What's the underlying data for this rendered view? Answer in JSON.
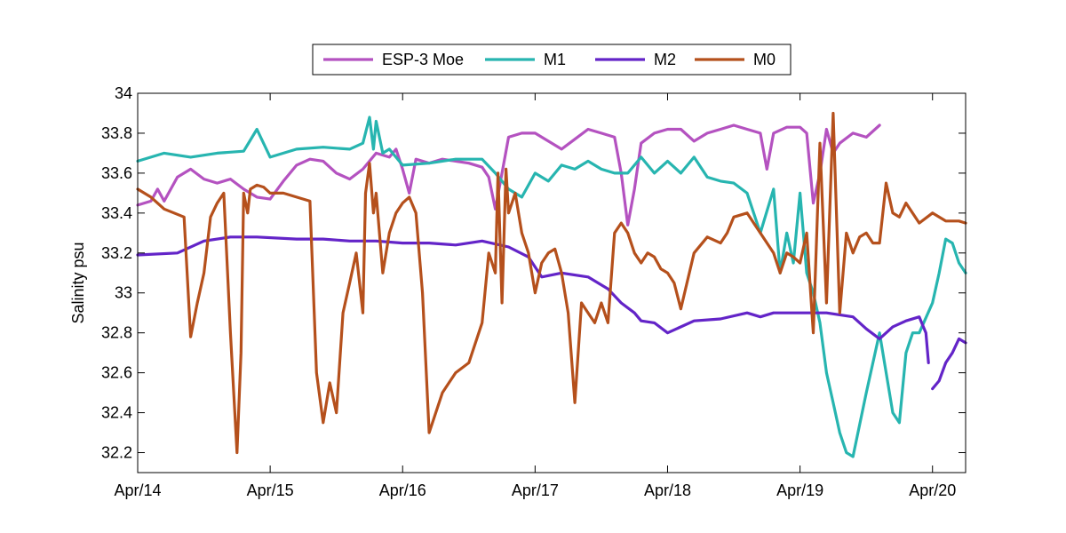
{
  "chart_data": {
    "type": "line",
    "title": "",
    "xlabel": "",
    "ylabel": "Salinity psu",
    "xlim": [
      0,
      6.25
    ],
    "ylim": [
      32.1,
      34.0
    ],
    "x_ticks": [
      {
        "x": 0,
        "label": "Apr/14"
      },
      {
        "x": 1,
        "label": "Apr/15"
      },
      {
        "x": 2,
        "label": "Apr/16"
      },
      {
        "x": 3,
        "label": "Apr/17"
      },
      {
        "x": 4,
        "label": "Apr/18"
      },
      {
        "x": 5,
        "label": "Apr/19"
      },
      {
        "x": 6,
        "label": "Apr/20"
      }
    ],
    "y_ticks": [
      {
        "y": 32.2,
        "label": "32.2"
      },
      {
        "y": 32.4,
        "label": "32.4"
      },
      {
        "y": 32.6,
        "label": "32.6"
      },
      {
        "y": 32.8,
        "label": "32.8"
      },
      {
        "y": 33.0,
        "label": "33"
      },
      {
        "y": 33.2,
        "label": "33.2"
      },
      {
        "y": 33.4,
        "label": "33.4"
      },
      {
        "y": 33.6,
        "label": "33.6"
      },
      {
        "y": 33.8,
        "label": "33.8"
      },
      {
        "y": 34.0,
        "label": "34"
      }
    ],
    "grid": false,
    "legend": "top-center",
    "series": [
      {
        "name": "ESP-3 Moe",
        "color": "#b452c0",
        "x": [
          0,
          0.1,
          0.15,
          0.2,
          0.3,
          0.4,
          0.5,
          0.6,
          0.7,
          0.8,
          0.9,
          1.0,
          1.1,
          1.2,
          1.3,
          1.4,
          1.5,
          1.6,
          1.7,
          1.8,
          1.9,
          1.95,
          2.0,
          2.05,
          2.1,
          2.2,
          2.3,
          2.4,
          2.5,
          2.6,
          2.65,
          2.7,
          2.75,
          2.8,
          2.9,
          3.0,
          3.1,
          3.2,
          3.3,
          3.4,
          3.5,
          3.6,
          3.65,
          3.7,
          3.75,
          3.8,
          3.9,
          4.0,
          4.1,
          4.2,
          4.3,
          4.4,
          4.5,
          4.6,
          4.7,
          4.75,
          4.8,
          4.9,
          5.0,
          5.05,
          5.1,
          5.15,
          5.2,
          5.25,
          5.3,
          5.4,
          5.5,
          5.6
        ],
        "y": [
          33.44,
          33.46,
          33.52,
          33.46,
          33.58,
          33.62,
          33.57,
          33.55,
          33.57,
          33.52,
          33.48,
          33.47,
          33.56,
          33.64,
          33.67,
          33.66,
          33.6,
          33.57,
          33.62,
          33.7,
          33.68,
          33.72,
          33.62,
          33.5,
          33.67,
          33.65,
          33.67,
          33.66,
          33.65,
          33.63,
          33.58,
          33.42,
          33.6,
          33.78,
          33.8,
          33.8,
          33.76,
          33.72,
          33.77,
          33.82,
          33.8,
          33.78,
          33.6,
          33.34,
          33.52,
          33.75,
          33.8,
          33.82,
          33.82,
          33.76,
          33.8,
          33.82,
          33.84,
          33.82,
          33.8,
          33.62,
          33.8,
          33.83,
          33.83,
          33.8,
          33.45,
          33.6,
          33.82,
          33.7,
          33.75,
          33.8,
          33.78,
          33.84
        ]
      },
      {
        "name": "M1",
        "color": "#27b5b0",
        "x": [
          0,
          0.2,
          0.4,
          0.6,
          0.8,
          0.9,
          1.0,
          1.2,
          1.4,
          1.6,
          1.7,
          1.75,
          1.78,
          1.8,
          1.85,
          1.9,
          2.0,
          2.2,
          2.4,
          2.6,
          2.7,
          2.8,
          2.9,
          3.0,
          3.1,
          3.2,
          3.3,
          3.4,
          3.5,
          3.6,
          3.7,
          3.8,
          3.9,
          4.0,
          4.1,
          4.2,
          4.3,
          4.4,
          4.5,
          4.6,
          4.7,
          4.8,
          4.85,
          4.9,
          4.95,
          5.0,
          5.05,
          5.1,
          5.15,
          5.2,
          5.25,
          5.3,
          5.35,
          5.4,
          5.5,
          5.6,
          5.7,
          5.75,
          5.8,
          5.85,
          5.9,
          6.0,
          6.05,
          6.1,
          6.15,
          6.2,
          6.25
        ],
        "y": [
          33.66,
          33.7,
          33.68,
          33.7,
          33.71,
          33.82,
          33.68,
          33.72,
          33.73,
          33.72,
          33.75,
          33.88,
          33.72,
          33.86,
          33.7,
          33.72,
          33.64,
          33.65,
          33.67,
          33.67,
          33.6,
          33.52,
          33.48,
          33.6,
          33.56,
          33.64,
          33.62,
          33.66,
          33.62,
          33.6,
          33.6,
          33.68,
          33.6,
          33.66,
          33.6,
          33.68,
          33.58,
          33.56,
          33.55,
          33.5,
          33.3,
          33.52,
          33.1,
          33.3,
          33.15,
          33.5,
          33.1,
          33.0,
          32.85,
          32.6,
          32.45,
          32.3,
          32.2,
          32.18,
          32.5,
          32.8,
          32.4,
          32.35,
          32.7,
          32.8,
          32.8,
          32.95,
          33.1,
          33.27,
          33.25,
          33.15,
          33.1
        ]
      },
      {
        "name": "M2",
        "color": "#6324c8",
        "x": [
          0,
          0.3,
          0.5,
          0.7,
          0.9,
          1.2,
          1.4,
          1.6,
          1.8,
          2.0,
          2.2,
          2.4,
          2.6,
          2.8,
          2.95,
          3.05,
          3.2,
          3.4,
          3.55,
          3.65,
          3.75,
          3.8,
          3.9,
          4.0,
          4.2,
          4.4,
          4.6,
          4.7,
          4.8,
          5.0,
          5.2,
          5.4,
          5.5,
          5.6,
          5.7,
          5.8,
          5.9,
          5.95,
          5.97
        ],
        "y": [
          33.19,
          33.2,
          33.26,
          33.28,
          33.28,
          33.27,
          33.27,
          33.26,
          33.26,
          33.25,
          33.25,
          33.24,
          33.26,
          33.23,
          33.18,
          33.08,
          33.1,
          33.08,
          33.02,
          32.95,
          32.9,
          32.86,
          32.85,
          32.8,
          32.86,
          32.87,
          32.9,
          32.88,
          32.9,
          32.9,
          32.9,
          32.88,
          32.82,
          32.77,
          32.83,
          32.86,
          32.88,
          32.8,
          32.65
        ]
      },
      {
        "name": "M2",
        "color": "#6324c8",
        "x": [
          6.0,
          6.05,
          6.1,
          6.15,
          6.2,
          6.25
        ],
        "y": [
          32.52,
          32.56,
          32.65,
          32.7,
          32.77,
          32.75
        ]
      },
      {
        "name": "M0",
        "color": "#b5501c",
        "x": [
          0,
          0.1,
          0.2,
          0.35,
          0.4,
          0.45,
          0.5,
          0.55,
          0.6,
          0.65,
          0.7,
          0.75,
          0.78,
          0.8,
          0.83,
          0.85,
          0.9,
          0.95,
          1.0,
          1.1,
          1.2,
          1.3,
          1.35,
          1.4,
          1.45,
          1.5,
          1.55,
          1.6,
          1.65,
          1.7,
          1.72,
          1.75,
          1.78,
          1.8,
          1.85,
          1.9,
          1.95,
          2.0,
          2.05,
          2.1,
          2.15,
          2.2,
          2.3,
          2.35,
          2.4,
          2.5,
          2.6,
          2.65,
          2.7,
          2.72,
          2.75,
          2.78,
          2.8,
          2.85,
          2.9,
          2.95,
          3.0,
          3.05,
          3.1,
          3.15,
          3.2,
          3.25,
          3.3,
          3.35,
          3.4,
          3.45,
          3.5,
          3.55,
          3.6,
          3.65,
          3.7,
          3.75,
          3.8,
          3.85,
          3.9,
          3.95,
          4.0,
          4.05,
          4.1,
          4.2,
          4.3,
          4.4,
          4.45,
          4.5,
          4.6,
          4.7,
          4.8,
          4.85,
          4.9,
          4.95,
          5.0,
          5.05,
          5.1,
          5.15,
          5.2,
          5.25,
          5.3,
          5.35,
          5.4,
          5.45,
          5.5,
          5.55,
          5.6,
          5.65,
          5.7,
          5.75,
          5.8,
          5.9,
          6.0,
          6.1,
          6.2,
          6.25
        ],
        "y": [
          33.52,
          33.48,
          33.42,
          33.38,
          32.78,
          32.95,
          33.1,
          33.38,
          33.45,
          33.5,
          32.8,
          32.2,
          32.7,
          33.5,
          33.4,
          33.52,
          33.54,
          33.53,
          33.5,
          33.5,
          33.48,
          33.46,
          32.6,
          32.35,
          32.55,
          32.4,
          32.9,
          33.05,
          33.2,
          32.9,
          33.5,
          33.65,
          33.4,
          33.5,
          33.1,
          33.3,
          33.4,
          33.45,
          33.48,
          33.4,
          33.0,
          32.3,
          32.5,
          32.55,
          32.6,
          32.65,
          32.85,
          33.2,
          33.1,
          33.6,
          32.95,
          33.62,
          33.4,
          33.5,
          33.3,
          33.2,
          33.0,
          33.15,
          33.2,
          33.22,
          33.1,
          32.9,
          32.45,
          32.95,
          32.9,
          32.85,
          32.95,
          32.85,
          33.3,
          33.35,
          33.3,
          33.2,
          33.15,
          33.2,
          33.18,
          33.12,
          33.1,
          33.05,
          32.92,
          33.2,
          33.28,
          33.25,
          33.3,
          33.38,
          33.4,
          33.3,
          33.2,
          33.1,
          33.2,
          33.18,
          33.15,
          33.3,
          32.8,
          33.75,
          32.95,
          33.9,
          32.9,
          33.3,
          33.2,
          33.28,
          33.3,
          33.25,
          33.25,
          33.55,
          33.4,
          33.38,
          33.45,
          33.35,
          33.4,
          33.36,
          33.36,
          33.35
        ]
      }
    ]
  }
}
